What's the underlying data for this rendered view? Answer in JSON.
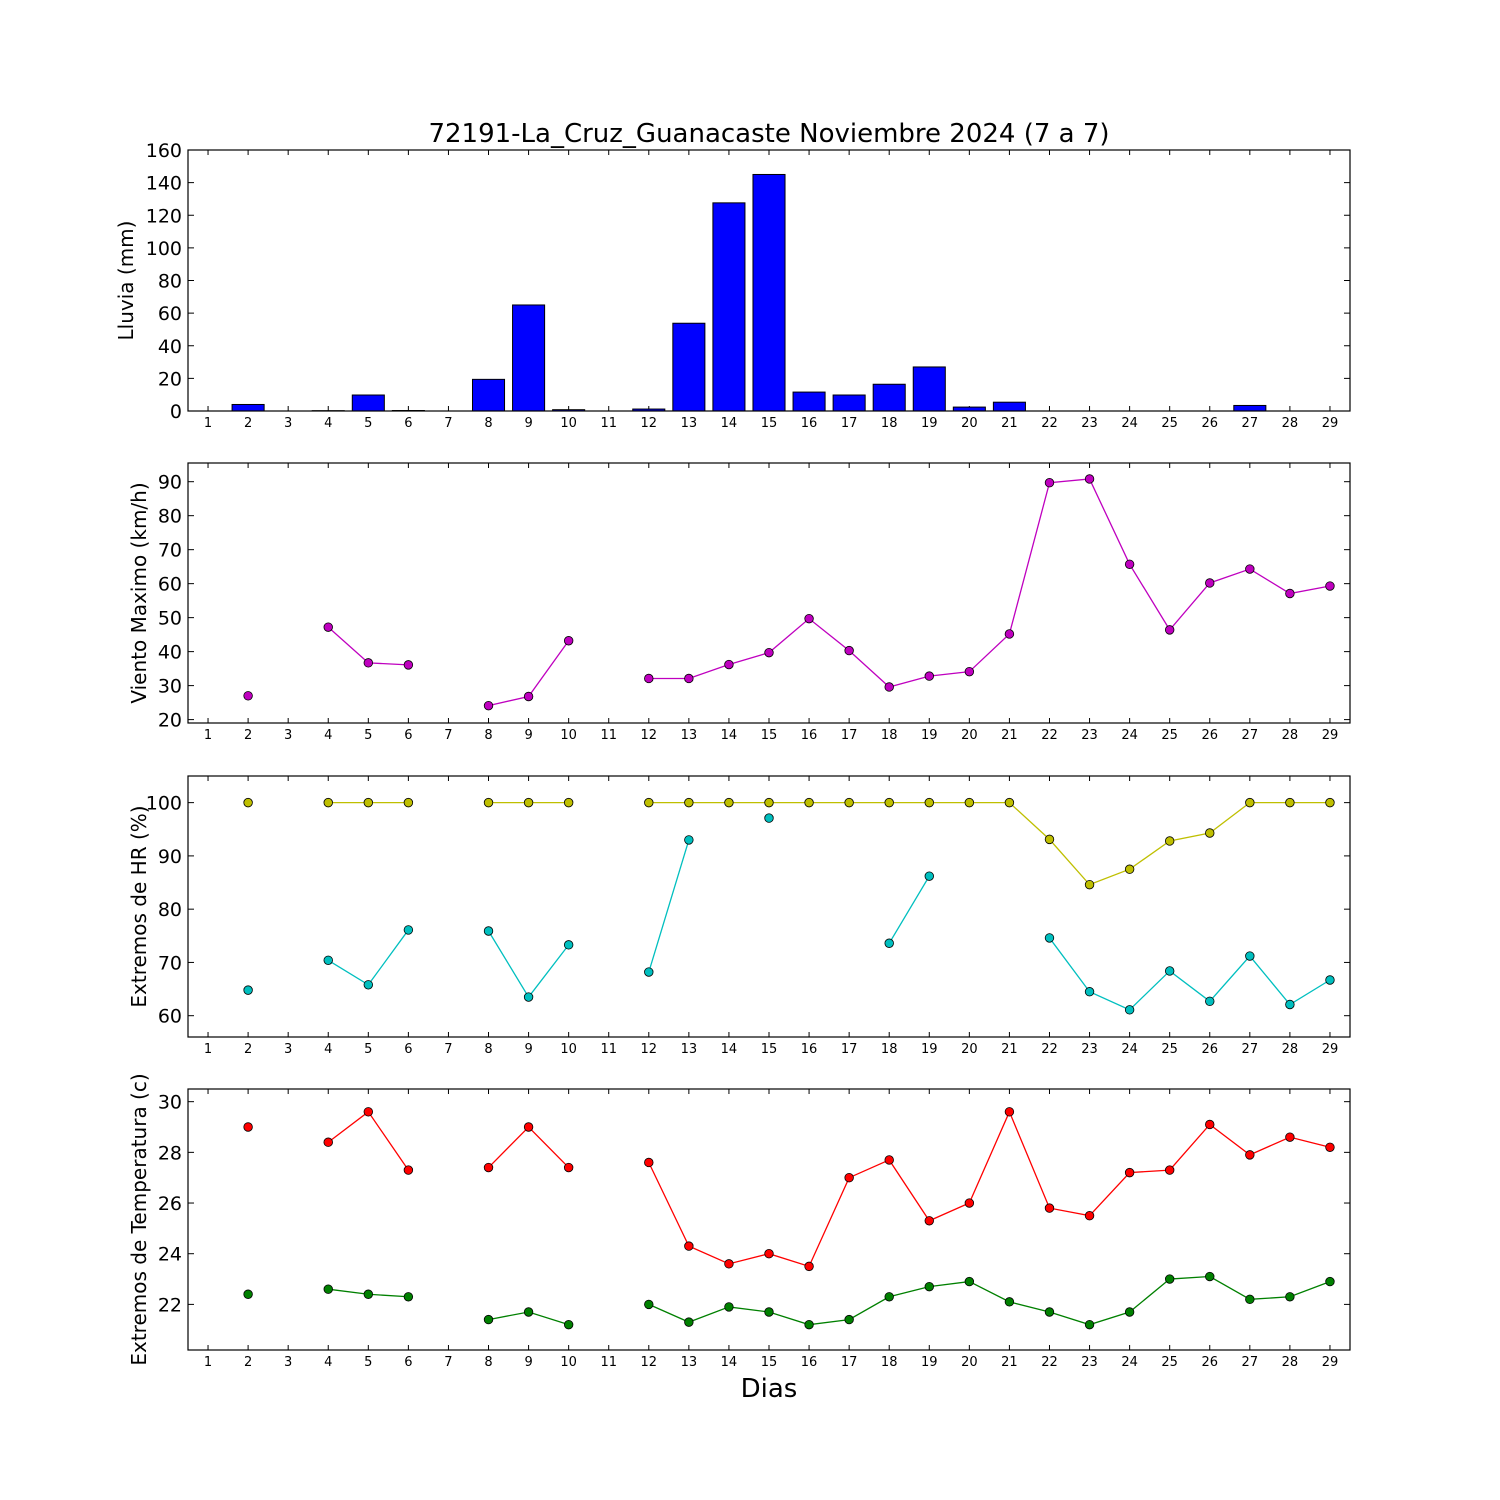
{
  "title": "72191-La_Cruz_Guanacaste Noviembre 2024  (7 a 7)",
  "xlabel": "Dias",
  "chart_data": [
    {
      "type": "bar",
      "ylabel": "Lluvia (mm)",
      "ylim": [
        0,
        160
      ],
      "yticks": [
        0,
        20,
        40,
        60,
        80,
        100,
        120,
        140,
        160
      ],
      "xlim": [
        0.5,
        29.5
      ],
      "categories": [
        1,
        2,
        3,
        4,
        5,
        6,
        7,
        8,
        9,
        10,
        11,
        12,
        13,
        14,
        15,
        16,
        17,
        18,
        19,
        20,
        21,
        22,
        23,
        24,
        25,
        26,
        27,
        28,
        29
      ],
      "series": [
        {
          "color": "#0000ff",
          "values": [
            0,
            4,
            0,
            0.2,
            9.8,
            0.3,
            0,
            19.4,
            65,
            0.8,
            0,
            1.2,
            53.8,
            127.6,
            145,
            11.6,
            9.8,
            16.4,
            27,
            2.4,
            5.4,
            0,
            0,
            0,
            0,
            0,
            3.4,
            0,
            0
          ]
        }
      ]
    },
    {
      "type": "line",
      "ylabel": "Viento Maximo (km/h)",
      "ylim": [
        19,
        95.5
      ],
      "yticks": [
        20,
        30,
        40,
        50,
        60,
        70,
        80,
        90
      ],
      "xlim": [
        0.5,
        29.5
      ],
      "x": [
        1,
        2,
        3,
        4,
        5,
        6,
        7,
        8,
        9,
        10,
        11,
        12,
        13,
        14,
        15,
        16,
        17,
        18,
        19,
        20,
        21,
        22,
        23,
        24,
        25,
        26,
        27,
        28,
        29
      ],
      "series": [
        {
          "color": "#bf00bf",
          "values": [
            null,
            27,
            null,
            47.2,
            36.7,
            36.1,
            null,
            24.1,
            26.8,
            43.2,
            null,
            32.1,
            32.1,
            36.2,
            39.7,
            49.7,
            40.3,
            29.6,
            32.8,
            34.1,
            45.2,
            89.7,
            90.8,
            65.7,
            46.4,
            60.2,
            64.3,
            57.1,
            59.3
          ]
        }
      ]
    },
    {
      "type": "line",
      "ylabel": "Extremos de HR (%)",
      "ylim": [
        56,
        105
      ],
      "yticks": [
        60,
        70,
        80,
        90,
        100
      ],
      "xlim": [
        0.5,
        29.5
      ],
      "x": [
        1,
        2,
        3,
        4,
        5,
        6,
        7,
        8,
        9,
        10,
        11,
        12,
        13,
        14,
        15,
        16,
        17,
        18,
        19,
        20,
        21,
        22,
        23,
        24,
        25,
        26,
        27,
        28,
        29
      ],
      "series": [
        {
          "color": "#bfbf00",
          "values": [
            null,
            100,
            null,
            100,
            100,
            100,
            null,
            100,
            100,
            100,
            null,
            100,
            100,
            100,
            100,
            100,
            100,
            100,
            100,
            100,
            100,
            93.1,
            84.6,
            87.5,
            92.8,
            94.3,
            100,
            100,
            100
          ]
        },
        {
          "color": "#00bfbf",
          "values": [
            null,
            64.8,
            null,
            70.4,
            65.8,
            76.1,
            null,
            75.9,
            63.5,
            73.3,
            null,
            68.2,
            93,
            null,
            97.1,
            null,
            null,
            73.6,
            86.2,
            null,
            null,
            74.6,
            64.5,
            61.1,
            68.4,
            62.7,
            71.2,
            62.1,
            66.7
          ]
        }
      ]
    },
    {
      "type": "line",
      "ylabel": "Extremos de Temperatura (c)",
      "ylim": [
        20.2,
        30.5
      ],
      "yticks": [
        22,
        24,
        26,
        28,
        30
      ],
      "xlim": [
        0.5,
        29.5
      ],
      "x": [
        1,
        2,
        3,
        4,
        5,
        6,
        7,
        8,
        9,
        10,
        11,
        12,
        13,
        14,
        15,
        16,
        17,
        18,
        19,
        20,
        21,
        22,
        23,
        24,
        25,
        26,
        27,
        28,
        29
      ],
      "series": [
        {
          "color": "#ff0000",
          "values": [
            null,
            29,
            null,
            28.4,
            29.6,
            27.3,
            null,
            27.4,
            29,
            27.4,
            null,
            27.6,
            24.3,
            23.6,
            24,
            23.5,
            27,
            27.7,
            25.3,
            26,
            29.6,
            25.8,
            25.5,
            27.2,
            27.3,
            29.1,
            27.9,
            28.6,
            28.2
          ]
        },
        {
          "color": "#008000",
          "values": [
            null,
            22.4,
            null,
            22.6,
            22.4,
            22.3,
            null,
            21.4,
            21.7,
            21.2,
            null,
            22,
            21.3,
            21.9,
            21.7,
            21.2,
            21.4,
            22.3,
            22.7,
            22.9,
            22.1,
            21.7,
            21.2,
            21.7,
            23,
            23.1,
            22.2,
            22.3,
            22.9
          ]
        }
      ]
    }
  ]
}
